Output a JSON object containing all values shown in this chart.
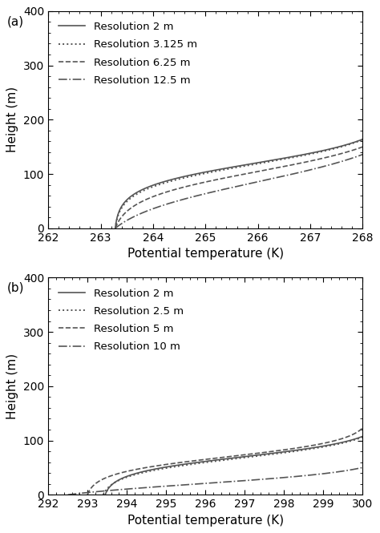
{
  "panel_a": {
    "label": "(a)",
    "xlim": [
      262,
      268
    ],
    "ylim": [
      0,
      400
    ],
    "xticks": [
      262,
      263,
      264,
      265,
      266,
      267,
      268
    ],
    "yticks": [
      0,
      100,
      200,
      300,
      400
    ],
    "xlabel": "Potential temperature (K)",
    "ylabel": "Height (m)",
    "lines": [
      {
        "label": "Resolution 2 m",
        "linestyle": "solid",
        "color": "#555555",
        "lw": 1.2
      },
      {
        "label": "Resolution 3.125 m",
        "linestyle": "dotted",
        "color": "#555555",
        "lw": 1.4
      },
      {
        "label": "Resolution 6.25 m",
        "linestyle": "dashed",
        "color": "#555555",
        "lw": 1.2
      },
      {
        "label": "Resolution 12.5 m",
        "linestyle": "dashdot",
        "color": "#555555",
        "lw": 1.2
      }
    ]
  },
  "panel_b": {
    "label": "(b)",
    "xlim": [
      292,
      300
    ],
    "ylim": [
      0,
      400
    ],
    "xticks": [
      292,
      293,
      294,
      295,
      296,
      297,
      298,
      299,
      300
    ],
    "yticks": [
      0,
      100,
      200,
      300,
      400
    ],
    "xlabel": "Potential temperature (K)",
    "ylabel": "Height (m)",
    "lines": [
      {
        "label": "Resolution 2 m",
        "linestyle": "solid",
        "color": "#555555",
        "lw": 1.2
      },
      {
        "label": "Resolution 2.5 m",
        "linestyle": "dotted",
        "color": "#555555",
        "lw": 1.4
      },
      {
        "label": "Resolution 5 m",
        "linestyle": "dashed",
        "color": "#555555",
        "lw": 1.2
      },
      {
        "label": "Resolution 10 m",
        "linestyle": "dashdot",
        "color": "#555555",
        "lw": 1.2
      }
    ]
  },
  "bg_color": "#ffffff",
  "tick_fontsize": 10,
  "label_fontsize": 11,
  "legend_fontsize": 9.5
}
